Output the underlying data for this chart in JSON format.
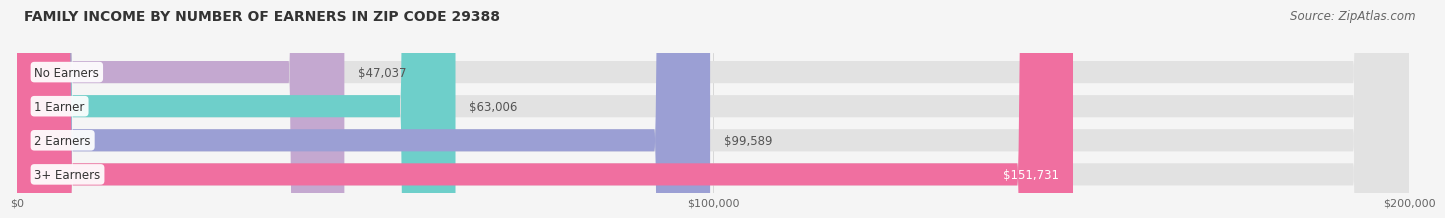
{
  "title": "FAMILY INCOME BY NUMBER OF EARNERS IN ZIP CODE 29388",
  "source": "Source: ZipAtlas.com",
  "categories": [
    "No Earners",
    "1 Earner",
    "2 Earners",
    "3+ Earners"
  ],
  "values": [
    47037,
    63006,
    99589,
    151731
  ],
  "bar_colors": [
    "#c4a8d0",
    "#6ecfca",
    "#9b9fd4",
    "#f06fa0"
  ],
  "bar_bg_color": "#e8e8e8",
  "value_labels": [
    "$47,037",
    "$63,006",
    "$99,589",
    "$151,731"
  ],
  "x_max": 200000,
  "x_ticks": [
    0,
    100000,
    200000
  ],
  "x_tick_labels": [
    "$0",
    "$100,000",
    "$200,000"
  ],
  "title_fontsize": 10,
  "source_fontsize": 8.5,
  "background_color": "#f5f5f5"
}
